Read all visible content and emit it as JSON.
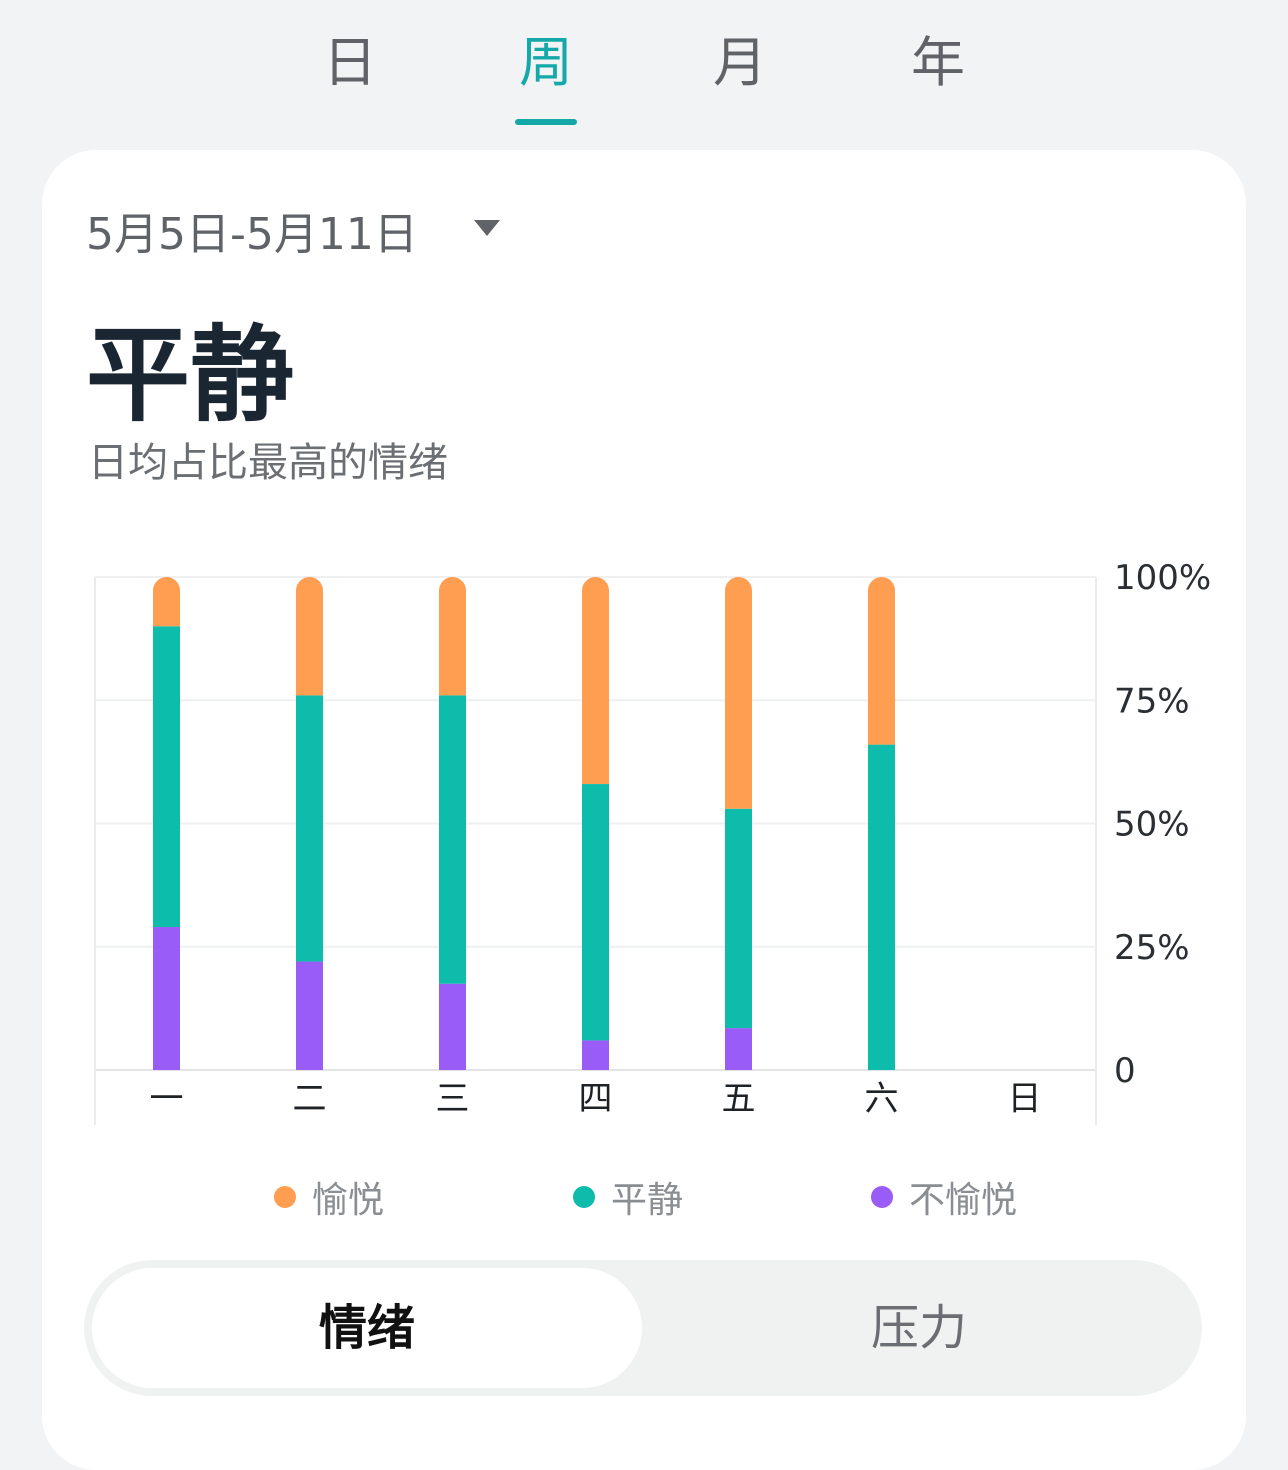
{
  "tabs": [
    {
      "label": "日",
      "active": false
    },
    {
      "label": "周",
      "active": true
    },
    {
      "label": "月",
      "active": false
    },
    {
      "label": "年",
      "active": false
    }
  ],
  "date_range": "5月5日-5月11日",
  "headline": "平静",
  "subtitle": "日均占比最高的情绪",
  "segment": {
    "active_label": "情绪",
    "inactive_label": "压力"
  },
  "colors": {
    "accent": "#14a8a8",
    "joyful": "#ff9d50",
    "calm": "#0dbcab",
    "unpleasant": "#9a5cf6"
  },
  "chart_data": {
    "type": "bar",
    "stacked": true,
    "categories": [
      "一",
      "二",
      "三",
      "四",
      "五",
      "六",
      "日"
    ],
    "series": [
      {
        "name": "不愉悦",
        "color": "#9a5cf6",
        "values": [
          29,
          22,
          17.5,
          6,
          8.5,
          0,
          0
        ]
      },
      {
        "name": "平静",
        "color": "#0dbcab",
        "values": [
          61,
          54,
          58.5,
          52,
          44.5,
          66,
          0
        ]
      },
      {
        "name": "愉悦",
        "color": "#ff9d50",
        "values": [
          10,
          24,
          24,
          42,
          47,
          34,
          0
        ]
      }
    ],
    "legend_order": [
      "愉悦",
      "平静",
      "不愉悦"
    ],
    "ylim": [
      0,
      100
    ],
    "yticks": [
      "0",
      "25%",
      "50%",
      "75%",
      "100%"
    ],
    "ytick_values": [
      0,
      25,
      50,
      75,
      100
    ],
    "y_axis_side": "right",
    "grid": true,
    "legend_position": "bottom"
  }
}
